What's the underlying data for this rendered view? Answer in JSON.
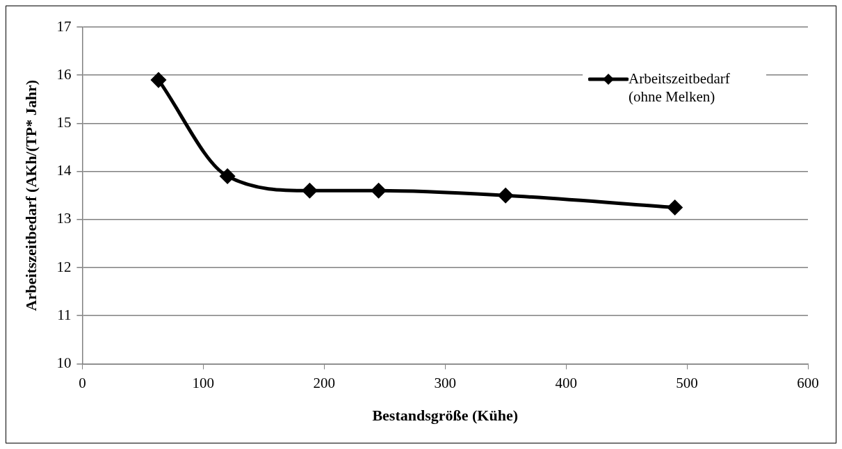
{
  "chart_data": {
    "type": "line",
    "xlabel": "Bestandsgröße (Kühe)",
    "ylabel": "Arbeitszeitbedarf (AKh/(TP* Jahr)",
    "x": [
      63,
      120,
      188,
      245,
      350,
      490
    ],
    "series": [
      {
        "name": "Arbeitszeitbedarf (ohne Melken)",
        "color": "#000000",
        "values": [
          15.9,
          13.9,
          13.6,
          13.6,
          13.5,
          13.25
        ]
      }
    ],
    "xlim": [
      0,
      600
    ],
    "xticks": [
      0,
      100,
      200,
      300,
      400,
      500,
      600
    ],
    "ylim": [
      10,
      17
    ],
    "yticks": [
      10,
      11,
      12,
      13,
      14,
      15,
      16,
      17
    ],
    "grid": "y",
    "legend": "top right",
    "marker": "diamond",
    "line_style": "solid"
  }
}
